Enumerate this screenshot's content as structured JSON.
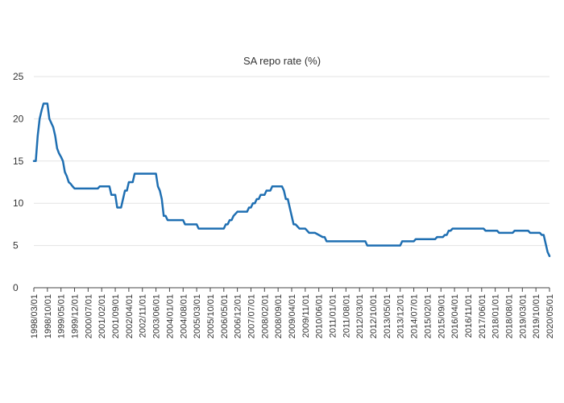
{
  "chart_data": {
    "type": "line",
    "title": "SA repo rate (%)",
    "xlabel": "",
    "ylabel": "",
    "ylim": [
      0,
      25
    ],
    "y_ticks": [
      "0",
      "5",
      "10",
      "15",
      "20",
      "25"
    ],
    "x_range": [
      "1998-03",
      "2020-05"
    ],
    "x_ticks": [
      "1998/03/01",
      "1998/10/01",
      "1999/05/01",
      "1999/12/01",
      "2000/07/01",
      "2001/02/01",
      "2001/09/01",
      "2002/04/01",
      "2002/11/01",
      "2003/06/01",
      "2004/01/01",
      "2004/08/01",
      "2005/03/01",
      "2005/10/01",
      "2006/05/01",
      "2006/12/01",
      "2007/07/01",
      "2008/02/01",
      "2008/09/01",
      "2009/04/01",
      "2009/11/01",
      "2010/06/01",
      "2011/01/01",
      "2011/08/01",
      "2012/03/01",
      "2012/10/01",
      "2013/05/01",
      "2013/12/01",
      "2014/07/01",
      "2015/02/01",
      "2015/09/01",
      "2016/04/01",
      "2016/11/01",
      "2017/06/01",
      "2018/01/01",
      "2018/08/01",
      "2019/03/01",
      "2019/10/01",
      "2020/05/01"
    ],
    "grid": "horizontal",
    "color": "#1f6fb2",
    "series": [
      {
        "x": [
          "1998-03",
          "1998-04",
          "1998-05",
          "1998-06",
          "1998-07",
          "1998-08",
          "1998-09",
          "1998-10",
          "1998-11",
          "1998-12",
          "1999-01",
          "1999-02",
          "1999-03",
          "1999-04",
          "1999-05",
          "1999-06",
          "1999-07",
          "1999-08",
          "1999-09",
          "1999-10",
          "1999-11",
          "1999-12",
          "2000-06",
          "2000-07",
          "2000-12",
          "2001-01",
          "2001-06",
          "2001-07",
          "2001-09",
          "2001-10",
          "2001-11",
          "2001-12",
          "2002-01",
          "2002-02",
          "2002-03",
          "2002-04",
          "2002-06",
          "2002-07",
          "2002-09",
          "2002-10",
          "2002-11",
          "2003-06",
          "2003-07",
          "2003-08",
          "2003-09",
          "2003-10",
          "2003-11",
          "2003-12",
          "2004-08",
          "2004-09",
          "2005-03",
          "2005-04",
          "2006-05",
          "2006-06",
          "2006-07",
          "2006-08",
          "2006-09",
          "2006-10",
          "2006-12",
          "2007-01",
          "2007-05",
          "2007-06",
          "2007-07",
          "2007-08",
          "2007-09",
          "2007-10",
          "2007-11",
          "2007-12",
          "2008-02",
          "2008-03",
          "2008-05",
          "2008-06",
          "2008-07",
          "2008-08",
          "2008-11",
          "2008-12",
          "2009-01",
          "2009-02",
          "2009-03",
          "2009-04",
          "2009-05",
          "2009-06",
          "2009-08",
          "2009-09",
          "2009-11",
          "2010-01",
          "2010-03",
          "2010-04",
          "2010-08",
          "2010-09",
          "2010-10",
          "2010-11",
          "2011-03",
          "2011-06",
          "2012-06",
          "2012-07",
          "2012-08",
          "2013-12",
          "2014-01",
          "2014-06",
          "2014-07",
          "2014-08",
          "2015-06",
          "2015-07",
          "2015-10",
          "2015-11",
          "2015-12",
          "2016-01",
          "2016-02",
          "2016-03",
          "2017-07",
          "2017-08",
          "2018-02",
          "2018-03",
          "2018-10",
          "2018-11",
          "2019-06",
          "2019-07",
          "2019-12",
          "2020-01",
          "2020-02",
          "2020-03",
          "2020-04",
          "2020-05"
        ],
        "values": [
          15.0,
          15.0,
          18.0,
          20.0,
          21.0,
          21.8,
          21.8,
          21.8,
          20.0,
          19.5,
          19.0,
          18.0,
          16.5,
          15.9,
          15.5,
          15.0,
          13.7,
          13.2,
          12.5,
          12.3,
          12.0,
          11.75,
          11.75,
          11.75,
          11.75,
          12.0,
          12.0,
          11.0,
          11.0,
          9.5,
          9.5,
          9.5,
          10.5,
          11.5,
          11.5,
          12.5,
          12.5,
          13.5,
          13.5,
          13.5,
          13.5,
          13.5,
          12.0,
          11.5,
          10.5,
          8.5,
          8.5,
          8.0,
          8.0,
          7.5,
          7.5,
          7.0,
          7.0,
          7.5,
          7.5,
          8.0,
          8.0,
          8.5,
          9.0,
          9.0,
          9.0,
          9.5,
          9.5,
          10.0,
          10.0,
          10.5,
          10.5,
          11.0,
          11.0,
          11.5,
          11.5,
          12.0,
          12.0,
          12.0,
          12.0,
          11.5,
          10.5,
          10.5,
          9.5,
          8.5,
          7.5,
          7.5,
          7.0,
          7.0,
          7.0,
          6.5,
          6.5,
          6.5,
          6.0,
          6.0,
          5.5,
          5.5,
          5.5,
          5.5,
          5.5,
          5.0,
          5.0,
          5.0,
          5.5,
          5.5,
          5.5,
          5.75,
          5.75,
          6.0,
          6.0,
          6.25,
          6.25,
          6.75,
          6.75,
          7.0,
          7.0,
          6.75,
          6.75,
          6.5,
          6.5,
          6.75,
          6.75,
          6.5,
          6.5,
          6.25,
          6.25,
          5.25,
          4.25,
          3.75
        ]
      }
    ]
  }
}
